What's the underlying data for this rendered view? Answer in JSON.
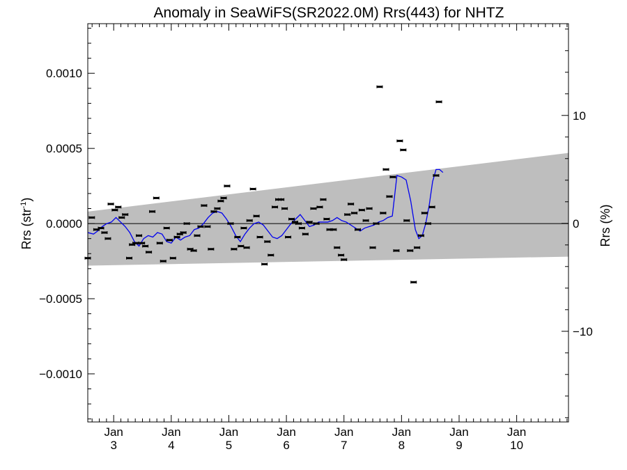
{
  "chart_data": {
    "type": "scatter",
    "title": "Anomaly in SeaWiFS(SR2022.0M) Rrs(443) for NHTZ",
    "ylabel_left": "Rrs (str",
    "ylabel_left_sup": "-1",
    "ylabel_left_close": ")",
    "ylabel_right": "Rrs (%)",
    "xlabel": "",
    "xlim": [
      2.55,
      10.9
    ],
    "ylim": [
      -0.00132,
      0.00133
    ],
    "right_ylim": [
      -18.4,
      18.5
    ],
    "x_ticks": [
      {
        "x": 3,
        "month": "Jan",
        "day": "3"
      },
      {
        "x": 4,
        "month": "Jan",
        "day": "4"
      },
      {
        "x": 5,
        "month": "Jan",
        "day": "5"
      },
      {
        "x": 6,
        "month": "Jan",
        "day": "6"
      },
      {
        "x": 7,
        "month": "Jan",
        "day": "7"
      },
      {
        "x": 8,
        "month": "Jan",
        "day": "8"
      },
      {
        "x": 9,
        "month": "Jan",
        "day": "9"
      },
      {
        "x": 10,
        "month": "Jan",
        "day": "10"
      }
    ],
    "y_ticks": [
      {
        "value": 0.001,
        "label": "0.0010"
      },
      {
        "value": 0.0005,
        "label": "0.0005"
      },
      {
        "value": 0.0,
        "label": "0.0000"
      },
      {
        "value": -0.0005,
        "label": "−0.0005"
      },
      {
        "value": -0.001,
        "label": "−0.0010"
      }
    ],
    "right_ticks": [
      {
        "value": 10,
        "label": "10"
      },
      {
        "value": 0,
        "label": "0"
      },
      {
        "value": -10,
        "label": "−10"
      }
    ],
    "zero_line": true,
    "band": {
      "color": "#bebebe",
      "upper": [
        [
          2.55,
          8e-05
        ],
        [
          10.9,
          0.00047
        ]
      ],
      "lower": [
        [
          2.55,
          -0.00028
        ],
        [
          10.9,
          -0.00022
        ]
      ]
    },
    "series": [
      {
        "kind": "points",
        "color": "#000000",
        "points": [
          [
            2.55,
            -0.00023
          ],
          [
            2.62,
            4e-05
          ],
          [
            2.7,
            -4e-05
          ],
          [
            2.78,
            -3e-05
          ],
          [
            2.84,
            -6e-05
          ],
          [
            2.9,
            -0.0001
          ],
          [
            2.95,
            0.00013
          ],
          [
            3.02,
            9e-05
          ],
          [
            3.08,
            0.00011
          ],
          [
            3.14,
            4e-05
          ],
          [
            3.2,
            6e-05
          ],
          [
            3.27,
            -0.00023
          ],
          [
            3.32,
            -0.00014
          ],
          [
            3.38,
            -0.00013
          ],
          [
            3.44,
            -8e-05
          ],
          [
            3.49,
            -0.00013
          ],
          [
            3.55,
            -0.00015
          ],
          [
            3.61,
            -0.00019
          ],
          [
            3.67,
            8e-05
          ],
          [
            3.74,
            0.00017
          ],
          [
            3.8,
            -0.00013
          ],
          [
            3.86,
            -0.00025
          ],
          [
            3.92,
            -3e-05
          ],
          [
            3.97,
            -0.00011
          ],
          [
            4.03,
            -0.00023
          ],
          [
            4.1,
            -9e-05
          ],
          [
            4.15,
            -7e-05
          ],
          [
            4.21,
            -6e-05
          ],
          [
            4.27,
            0.0
          ],
          [
            4.33,
            -0.00017
          ],
          [
            4.39,
            -0.00018
          ],
          [
            4.45,
            -8e-05
          ],
          [
            4.51,
            -2e-05
          ],
          [
            4.57,
            0.00012
          ],
          [
            4.63,
            -2e-05
          ],
          [
            4.69,
            -0.00017
          ],
          [
            4.74,
            8e-05
          ],
          [
            4.8,
            0.0001
          ],
          [
            4.86,
            0.00015
          ],
          [
            4.91,
            0.00017
          ],
          [
            4.97,
            0.00025
          ],
          [
            5.03,
            0.0
          ],
          [
            5.09,
            -0.00017
          ],
          [
            5.15,
            -9e-05
          ],
          [
            5.21,
            -0.00015
          ],
          [
            5.26,
            -3e-05
          ],
          [
            5.31,
            -0.00016
          ],
          [
            5.36,
            2e-05
          ],
          [
            5.42,
            0.00023
          ],
          [
            5.48,
            5e-05
          ],
          [
            5.54,
            -9e-05
          ],
          [
            5.62,
            -0.00027
          ],
          [
            5.67,
            -0.00012
          ],
          [
            5.73,
            -0.00021
          ],
          [
            5.8,
            0.00011
          ],
          [
            5.86,
            0.00016
          ],
          [
            5.91,
            0.00016
          ],
          [
            5.97,
            0.0001
          ],
          [
            6.03,
            -9e-05
          ],
          [
            6.09,
            3e-05
          ],
          [
            6.15,
            1e-05
          ],
          [
            6.21,
            0.0
          ],
          [
            6.27,
            -3e-05
          ],
          [
            6.33,
            -7e-05
          ],
          [
            6.4,
            1e-05
          ],
          [
            6.47,
            0.0001
          ],
          [
            6.52,
            0.0
          ],
          [
            6.58,
            0.00011
          ],
          [
            6.64,
            0.00016
          ],
          [
            6.7,
            3e-05
          ],
          [
            6.75,
            -4e-05
          ],
          [
            6.82,
            -4e-05
          ],
          [
            6.88,
            -0.00016
          ],
          [
            6.95,
            -0.00021
          ],
          [
            7.0,
            -0.00024
          ],
          [
            7.06,
            6e-05
          ],
          [
            7.12,
            0.00013
          ],
          [
            7.18,
            7e-05
          ],
          [
            7.24,
            -4e-05
          ],
          [
            7.31,
            9e-05
          ],
          [
            7.38,
            2e-05
          ],
          [
            7.44,
            0.0001
          ],
          [
            7.5,
            -0.00016
          ],
          [
            7.56,
            0.0
          ],
          [
            7.62,
            0.00091
          ],
          [
            7.68,
            7e-05
          ],
          [
            7.73,
            0.00036
          ],
          [
            7.79,
            0.00018
          ],
          [
            7.85,
            0.00031
          ],
          [
            7.91,
            -0.00018
          ],
          [
            7.97,
            0.00055
          ],
          [
            8.03,
            0.00049
          ],
          [
            8.09,
            2e-05
          ],
          [
            8.15,
            -0.00018
          ],
          [
            8.21,
            -0.00039
          ],
          [
            8.27,
            -0.00016
          ],
          [
            8.34,
            -8e-05
          ],
          [
            8.4,
            7e-05
          ],
          [
            8.46,
            0.0
          ],
          [
            8.53,
            0.00011
          ],
          [
            8.6,
            0.00032
          ],
          [
            8.65,
            0.00081
          ]
        ]
      },
      {
        "kind": "line",
        "color": "#0000ee",
        "points": [
          [
            2.55,
            -6e-05
          ],
          [
            2.65,
            -7e-05
          ],
          [
            2.72,
            -5e-05
          ],
          [
            2.8,
            -2e-05
          ],
          [
            2.88,
            0.0
          ],
          [
            2.96,
            1e-05
          ],
          [
            3.04,
            4e-05
          ],
          [
            3.12,
            1e-05
          ],
          [
            3.2,
            -2e-05
          ],
          [
            3.28,
            -6e-05
          ],
          [
            3.36,
            -0.00012
          ],
          [
            3.44,
            -0.00015
          ],
          [
            3.52,
            -0.0001
          ],
          [
            3.6,
            -8e-05
          ],
          [
            3.68,
            -9e-05
          ],
          [
            3.76,
            -6e-05
          ],
          [
            3.84,
            -7e-05
          ],
          [
            3.92,
            -0.00012
          ],
          [
            4.0,
            -0.00013
          ],
          [
            4.08,
            -9e-05
          ],
          [
            4.16,
            -0.00011
          ],
          [
            4.24,
            -9e-05
          ],
          [
            4.32,
            -8e-05
          ],
          [
            4.4,
            -4e-05
          ],
          [
            4.48,
            -3e-05
          ],
          [
            4.56,
            0.0
          ],
          [
            4.64,
            4e-05
          ],
          [
            4.72,
            7e-05
          ],
          [
            4.8,
            8e-05
          ],
          [
            4.88,
            7e-05
          ],
          [
            4.96,
            3e-05
          ],
          [
            5.04,
            -2e-05
          ],
          [
            5.12,
            -8e-05
          ],
          [
            5.2,
            -0.00012
          ],
          [
            5.28,
            -7e-05
          ],
          [
            5.36,
            -3e-05
          ],
          [
            5.44,
            0.0
          ],
          [
            5.52,
            1e-05
          ],
          [
            5.6,
            -1e-05
          ],
          [
            5.68,
            -5e-05
          ],
          [
            5.76,
            -9e-05
          ],
          [
            5.84,
            -0.0001
          ],
          [
            5.92,
            -8e-05
          ],
          [
            6.0,
            -4e-05
          ],
          [
            6.08,
            0.0
          ],
          [
            6.16,
            3e-05
          ],
          [
            6.24,
            6e-05
          ],
          [
            6.32,
            2e-05
          ],
          [
            6.4,
            -2e-05
          ],
          [
            6.48,
            -1e-05
          ],
          [
            6.56,
            1e-05
          ],
          [
            6.64,
            1e-05
          ],
          [
            6.72,
            1e-05
          ],
          [
            6.8,
            2e-05
          ],
          [
            6.88,
            4e-05
          ],
          [
            6.96,
            2e-05
          ],
          [
            7.04,
            1e-05
          ],
          [
            7.12,
            -1e-05
          ],
          [
            7.2,
            -3e-05
          ],
          [
            7.28,
            -5e-05
          ],
          [
            7.36,
            -3e-05
          ],
          [
            7.44,
            -2e-05
          ],
          [
            7.52,
            -1e-05
          ],
          [
            7.6,
            1e-05
          ],
          [
            7.68,
            2e-05
          ],
          [
            7.76,
            4e-05
          ],
          [
            7.84,
            5e-05
          ],
          [
            7.92,
            0.00032
          ],
          [
            8.0,
            0.00031
          ],
          [
            8.08,
            0.00029
          ],
          [
            8.16,
            0.00015
          ],
          [
            8.24,
            -4e-05
          ],
          [
            8.3,
            -0.0001
          ],
          [
            8.36,
            -8e-05
          ],
          [
            8.42,
            0.0
          ],
          [
            8.48,
            0.00012
          ],
          [
            8.54,
            0.00028
          ],
          [
            8.6,
            0.00036
          ],
          [
            8.66,
            0.00036
          ],
          [
            8.72,
            0.00034
          ]
        ]
      }
    ]
  }
}
